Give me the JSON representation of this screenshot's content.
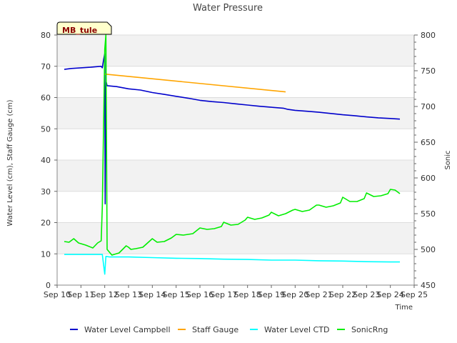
{
  "chart_data": {
    "type": "line",
    "title": "Water Pressure",
    "badge": "MB_tule",
    "xlabel": "Time",
    "ylabel_left": "Water Level (cm), Staff Gauge (cm)",
    "ylabel_right": "Sonic",
    "xlim": [
      10,
      25
    ],
    "ylim_left": [
      0,
      80
    ],
    "ylim_right": [
      450,
      800
    ],
    "x_ticks": [
      {
        "x": 10,
        "label": "Sep 10"
      },
      {
        "x": 11,
        "label": "Sep 11"
      },
      {
        "x": 12,
        "label": "Sep 12"
      },
      {
        "x": 13,
        "label": "Sep 13"
      },
      {
        "x": 14,
        "label": "Sep 14"
      },
      {
        "x": 15,
        "label": "Sep 15"
      },
      {
        "x": 16,
        "label": "Sep 16"
      },
      {
        "x": 17,
        "label": "Sep 17"
      },
      {
        "x": 18,
        "label": "Sep 18"
      },
      {
        "x": 19,
        "label": "Sep 19"
      },
      {
        "x": 20,
        "label": "Sep 20"
      },
      {
        "x": 21,
        "label": "Sep 21"
      },
      {
        "x": 22,
        "label": "Sep 22"
      },
      {
        "x": 23,
        "label": "Sep 23"
      },
      {
        "x": 24,
        "label": "Sep 24"
      },
      {
        "x": 25,
        "label": "Sep 25"
      }
    ],
    "y_ticks_left": [
      "0",
      "10",
      "20",
      "30",
      "40",
      "50",
      "60",
      "70",
      "80"
    ],
    "y_ticks_right": [
      "450",
      "500",
      "550",
      "600",
      "650",
      "700",
      "750",
      "800"
    ],
    "grid": true,
    "legend_position": "bottom",
    "series": [
      {
        "name": "Water Level Campbell",
        "axis": "left",
        "color": "#0000cc",
        "points": [
          [
            10.3,
            69.0
          ],
          [
            10.6,
            69.3
          ],
          [
            11.0,
            69.5
          ],
          [
            11.4,
            69.7
          ],
          [
            11.7,
            69.9
          ],
          [
            11.85,
            70.0
          ],
          [
            11.9,
            69.5
          ],
          [
            11.95,
            72
          ],
          [
            12.0,
            74
          ],
          [
            12.02,
            26
          ],
          [
            12.04,
            60
          ],
          [
            12.06,
            65
          ],
          [
            12.1,
            63.8
          ],
          [
            12.5,
            63.5
          ],
          [
            13.0,
            62.8
          ],
          [
            13.5,
            62.4
          ],
          [
            14.0,
            61.6
          ],
          [
            14.5,
            61.0
          ],
          [
            15.0,
            60.4
          ],
          [
            15.5,
            59.8
          ],
          [
            16.0,
            59.1
          ],
          [
            16.5,
            58.7
          ],
          [
            17.0,
            58.4
          ],
          [
            17.5,
            58.0
          ],
          [
            18.0,
            57.6
          ],
          [
            18.5,
            57.2
          ],
          [
            19.0,
            56.9
          ],
          [
            19.5,
            56.6
          ],
          [
            19.7,
            56.2
          ],
          [
            20.0,
            55.9
          ],
          [
            20.5,
            55.6
          ],
          [
            21.0,
            55.3
          ],
          [
            21.5,
            54.9
          ],
          [
            22.0,
            54.5
          ],
          [
            22.5,
            54.2
          ],
          [
            23.0,
            53.8
          ],
          [
            23.5,
            53.5
          ],
          [
            24.0,
            53.3
          ],
          [
            24.4,
            53.1
          ]
        ]
      },
      {
        "name": "Staff Gauge",
        "axis": "left",
        "color": "#ffa500",
        "points": [
          [
            12.0,
            67.5
          ],
          [
            19.6,
            61.8
          ]
        ]
      },
      {
        "name": "Water Level CTD",
        "axis": "left",
        "color": "#00ffff",
        "points": [
          [
            10.3,
            9.8
          ],
          [
            11.0,
            9.8
          ],
          [
            11.9,
            9.8
          ],
          [
            12.0,
            3.5
          ],
          [
            12.05,
            9.2
          ],
          [
            12.2,
            9.0
          ],
          [
            13.0,
            9.0
          ],
          [
            14.0,
            8.8
          ],
          [
            15.0,
            8.6
          ],
          [
            16.0,
            8.5
          ],
          [
            17.0,
            8.3
          ],
          [
            18.0,
            8.2
          ],
          [
            19.0,
            8.0
          ],
          [
            20.0,
            8.0
          ],
          [
            21.0,
            7.8
          ],
          [
            22.0,
            7.7
          ],
          [
            23.0,
            7.5
          ],
          [
            24.0,
            7.4
          ],
          [
            24.4,
            7.4
          ]
        ]
      },
      {
        "name": "SonicRng",
        "axis": "right",
        "color": "#00ee00",
        "points": [
          [
            10.3,
            511
          ],
          [
            10.5,
            510
          ],
          [
            10.7,
            515
          ],
          [
            10.9,
            509
          ],
          [
            11.2,
            506
          ],
          [
            11.5,
            502
          ],
          [
            11.7,
            509
          ],
          [
            11.85,
            512
          ],
          [
            11.9,
            560
          ],
          [
            12.0,
            780
          ],
          [
            12.05,
            800
          ],
          [
            12.1,
            500
          ],
          [
            12.3,
            492
          ],
          [
            12.6,
            495
          ],
          [
            12.9,
            505
          ],
          [
            13.0,
            503
          ],
          [
            13.1,
            500
          ],
          [
            13.3,
            501
          ],
          [
            13.6,
            503
          ],
          [
            13.9,
            512
          ],
          [
            14.0,
            515
          ],
          [
            14.2,
            510
          ],
          [
            14.5,
            511
          ],
          [
            14.8,
            516
          ],
          [
            15.0,
            521
          ],
          [
            15.3,
            520
          ],
          [
            15.7,
            522
          ],
          [
            16.0,
            530
          ],
          [
            16.3,
            528
          ],
          [
            16.6,
            529
          ],
          [
            16.9,
            532
          ],
          [
            17.0,
            538
          ],
          [
            17.3,
            534
          ],
          [
            17.6,
            535
          ],
          [
            17.9,
            541
          ],
          [
            18.0,
            545
          ],
          [
            18.3,
            542
          ],
          [
            18.6,
            544
          ],
          [
            18.9,
            548
          ],
          [
            19.0,
            552
          ],
          [
            19.3,
            547
          ],
          [
            19.6,
            550
          ],
          [
            19.9,
            555
          ],
          [
            20.0,
            556
          ],
          [
            20.3,
            553
          ],
          [
            20.6,
            555
          ],
          [
            20.9,
            562
          ],
          [
            21.0,
            562
          ],
          [
            21.3,
            559
          ],
          [
            21.6,
            561
          ],
          [
            21.9,
            565
          ],
          [
            22.0,
            573
          ],
          [
            22.3,
            567
          ],
          [
            22.6,
            567
          ],
          [
            22.9,
            571
          ],
          [
            23.0,
            579
          ],
          [
            23.3,
            574
          ],
          [
            23.6,
            575
          ],
          [
            23.9,
            578
          ],
          [
            24.0,
            584
          ],
          [
            24.2,
            583
          ],
          [
            24.4,
            578
          ]
        ]
      }
    ]
  }
}
